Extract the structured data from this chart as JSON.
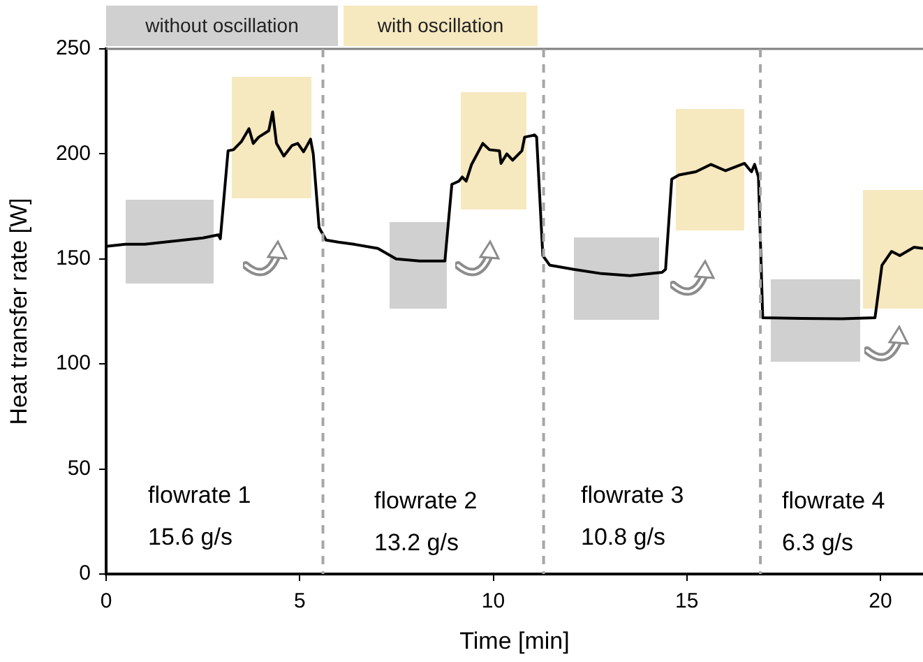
{
  "chart_data": {
    "type": "line",
    "xlabel": "Time [min]",
    "ylabel": "Heat transfer rate [W]",
    "x": [
      0,
      0.5,
      1,
      1.5,
      2,
      2.5,
      2.9,
      2.95,
      3.15,
      3.29,
      3.5,
      3.69,
      3.8,
      3.94,
      4.2,
      4.3,
      4.4,
      4.59,
      4.8,
      4.95,
      5.1,
      5.28,
      5.35,
      5.5,
      5.68,
      6.0,
      6.4,
      7.02,
      7.49,
      8.1,
      8.75,
      8.93,
      9.11,
      9.2,
      9.3,
      9.44,
      9.73,
      9.9,
      10.16,
      10.2,
      10.35,
      10.5,
      10.74,
      10.81,
      11.07,
      11.12,
      11.28,
      11.46,
      12.08,
      12.8,
      13.53,
      14.36,
      14.45,
      14.61,
      14.8,
      15.23,
      15.62,
      16.0,
      16.49,
      16.6,
      16.67,
      16.75,
      16.85,
      16.96,
      17.97,
      19,
      19.86,
      20.04,
      20.29,
      20.5,
      20.87,
      21.1
    ],
    "series": [
      {
        "color": "#000000",
        "values": [
          156,
          157,
          157,
          158,
          159,
          160,
          161.5,
          159.6,
          201.5,
          202,
          206,
          212,
          205,
          208,
          211,
          220,
          205,
          199,
          204,
          205,
          201,
          207,
          200,
          165,
          159,
          158,
          157,
          155,
          150,
          149,
          149,
          185.5,
          187,
          189,
          187,
          195,
          205,
          202,
          201.5,
          195.5,
          200,
          197,
          201.5,
          208,
          209,
          208,
          151.6,
          147,
          145,
          143,
          142,
          143.6,
          145,
          188,
          190,
          191.5,
          195,
          192,
          195.5,
          193,
          191.5,
          195,
          189,
          122,
          121.7,
          121.5,
          122,
          147,
          153.6,
          151.6,
          155.6,
          155
        ]
      }
    ],
    "xlim": [
      0,
      21.1
    ],
    "ylim": [
      0,
      250
    ],
    "xticks": [
      0,
      5,
      10,
      15,
      20
    ],
    "yticks": [
      0,
      50,
      100,
      150,
      200,
      250
    ],
    "grid": false,
    "legend": false,
    "marker": "none",
    "line_style": "solid",
    "ref_lines": [
      {
        "axis": "x",
        "value": 5.6,
        "color": "#a6a6a6",
        "line_style": "dashed"
      },
      {
        "axis": "x",
        "value": 11.3,
        "color": "#a6a6a6",
        "line_style": "dashed"
      },
      {
        "axis": "x",
        "value": 16.9,
        "color": "#a6a6a6",
        "line_style": "dashed"
      }
    ],
    "annotations": [
      "without oscillation",
      "with oscillation",
      "flowrate 1\n15.6 g/s",
      "flowrate 2\n13.2 g/s",
      "flowrate 3\n10.8 g/s",
      "flowrate 4\n6.3 g/s"
    ]
  }
}
